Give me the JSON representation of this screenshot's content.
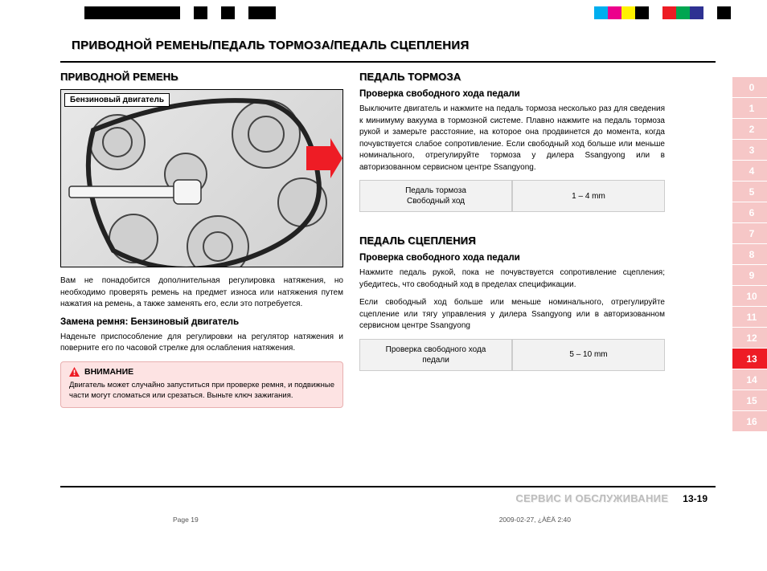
{
  "calibration_colors_left": [
    "#000000",
    "#000000",
    "#000000",
    "#000000",
    "#000000",
    "#000000",
    "#000000",
    "#ffffff",
    "#000000",
    "#ffffff",
    "#000000",
    "#ffffff",
    "#000000",
    "#000000"
  ],
  "calibration_colors_right": [
    "#00aeef",
    "#ec008c",
    "#fff200",
    "#000000",
    "#ffffff",
    "#ed1c24",
    "#00a651",
    "#2e3192",
    "#ffffff",
    "#000000"
  ],
  "title": "ПРИВОДНОЙ РЕМЕНЬ/ПЕДАЛЬ ТОРМОЗА/ПЕДАЛЬ СЦЕПЛЕНИЯ",
  "left": {
    "heading": "ПРИВОДНОЙ РЕМЕНЬ",
    "figure_label": "Бензиновый двигатель",
    "para1": "Вам не понадобится дополнительная регулировка натяжения, но необходимо проверять ремень на предмет износа или натяжения путем нажатия на ремень, а также заменять его, если это потребуется.",
    "sub1": "Замена ремня: Бензиновый двигатель",
    "para2": "Наденьте приспособление для регулировки на регулятор натяжения и поверните его по часовой стрелке для ослабления натяжения.",
    "warn_title": "ВНИМАНИЕ",
    "warn_body": "Двигатель может случайно запуститься при проверке ремня, и подвижные части могут сломаться или срезаться. Выньте ключ зажигания."
  },
  "right_a": {
    "heading": "ПЕДАЛЬ ТОРМОЗА",
    "sub": "Проверка свободного хода педали",
    "para": "Выключите двигатель и нажмите на педаль тормоза несколько раз для сведения к минимуму вакуума в тормозной системе. Плавно нажмите на педаль тормоза рукой и замерьте расстояние, на которое она продвинется до момента, когда почувствуется слабое сопротивление. Если свободный ход больше или меньше номинального, отрегулируйте тормоза у дилера Ssangyong или в авторизованном сервисном центре Ssangyong.",
    "spec_label": "Педаль тормоза\nСвободный ход",
    "spec_value": "1 – 4 mm"
  },
  "right_b": {
    "heading": "ПЕДАЛЬ СЦЕПЛЕНИЯ",
    "sub": "Проверка свободного хода педали",
    "para1": "Нажмите педаль рукой, пока не почувствуется сопротивление сцепления; убедитесь, что свободный ход в пределах спецификации.",
    "para2": "Если свободный ход больше или меньше номинального, отрегулируйте сцепление или тягу управления у дилера Ssangyong или в авторизованном сервисном центре Ssangyong",
    "spec_label": "Проверка свободного хода\nпедали",
    "spec_value": "5 – 10 mm"
  },
  "tabs": [
    "0",
    "1",
    "2",
    "3",
    "4",
    "5",
    "6",
    "7",
    "8",
    "9",
    "10",
    "11",
    "12",
    "13",
    "14",
    "15",
    "16"
  ],
  "tab_active_index": 13,
  "tab_color": "#f6c7c7",
  "tab_active_color": "#ee1c25",
  "footer_section": "СЕРВИС И ОБСЛУЖИВАНИЕ",
  "footer_page": "13-19",
  "meta_left": "Page 19",
  "meta_right": "2009-02-27, ¿ÀÈÄ 2:40"
}
